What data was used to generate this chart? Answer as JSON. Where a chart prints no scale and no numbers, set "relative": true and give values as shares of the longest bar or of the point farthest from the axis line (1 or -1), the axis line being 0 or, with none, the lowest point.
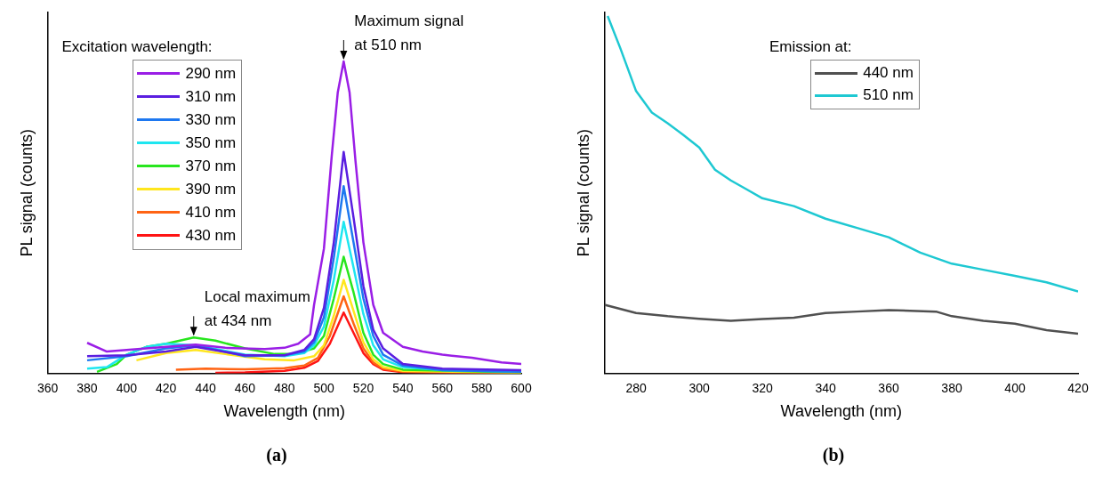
{
  "chart_data": [
    {
      "type": "line",
      "relative": true,
      "xlabel": "Wavelength (nm)",
      "ylabel": "PL signal (counts)",
      "legend_title": "Excitation wavelength:",
      "legend": "top left",
      "tick_labels": "x",
      "xlim": [
        360,
        600
      ],
      "xticks": [
        360,
        380,
        400,
        420,
        440,
        460,
        480,
        500,
        520,
        540,
        560,
        580,
        600
      ],
      "grid": false,
      "marker": "none",
      "line_style": "solid",
      "annotations": [
        {
          "text": "Maximum signal at 510 nm",
          "x": 510,
          "y": 1.0
        },
        {
          "text": "Local maximum at 434 nm",
          "x": 434,
          "y": 0.115
        },
        "(a)"
      ],
      "series": [
        {
          "name": "290 nm",
          "color": "#9a1ee6",
          "x": [
            380,
            390,
            400,
            420,
            435,
            450,
            470,
            480,
            487,
            493,
            495,
            500,
            504,
            507,
            510,
            513,
            516,
            520,
            525,
            530,
            540,
            550,
            560,
            575,
            590,
            600
          ],
          "values": [
            0.098,
            0.07,
            0.075,
            0.085,
            0.092,
            0.082,
            0.078,
            0.082,
            0.095,
            0.125,
            0.22,
            0.4,
            0.7,
            0.9,
            1.0,
            0.9,
            0.68,
            0.42,
            0.22,
            0.13,
            0.085,
            0.07,
            0.06,
            0.05,
            0.035,
            0.03
          ]
        },
        {
          "name": "310 nm",
          "color": "#5a1ee0",
          "x": [
            380,
            400,
            420,
            435,
            460,
            480,
            490,
            495,
            500,
            505,
            510,
            515,
            520,
            525,
            530,
            540,
            560,
            600
          ],
          "values": [
            0.055,
            0.058,
            0.07,
            0.085,
            0.058,
            0.058,
            0.075,
            0.11,
            0.21,
            0.42,
            0.71,
            0.5,
            0.28,
            0.14,
            0.08,
            0.03,
            0.015,
            0.01
          ]
        },
        {
          "name": "330 nm",
          "color": "#1e78f0",
          "x": [
            380,
            400,
            420,
            435,
            460,
            480,
            490,
            495,
            500,
            505,
            510,
            515,
            520,
            525,
            530,
            540,
            560,
            600
          ],
          "values": [
            0.042,
            0.055,
            0.08,
            0.09,
            0.055,
            0.058,
            0.07,
            0.1,
            0.18,
            0.37,
            0.6,
            0.42,
            0.24,
            0.12,
            0.06,
            0.025,
            0.01,
            0.005
          ]
        },
        {
          "name": "350 nm",
          "color": "#1ee6f0",
          "x": [
            380,
            390,
            400,
            410,
            420,
            435,
            460,
            480,
            490,
            495,
            500,
            505,
            510,
            515,
            520,
            525,
            530,
            540,
            560,
            600
          ],
          "values": [
            0.015,
            0.02,
            0.06,
            0.085,
            0.095,
            0.09,
            0.06,
            0.055,
            0.065,
            0.09,
            0.15,
            0.3,
            0.486,
            0.34,
            0.19,
            0.09,
            0.045,
            0.02,
            0.01,
            0.005
          ]
        },
        {
          "name": "370 nm",
          "color": "#28e61e",
          "x": [
            385,
            395,
            400,
            410,
            420,
            434,
            445,
            460,
            475,
            485,
            495,
            500,
            505,
            510,
            515,
            520,
            525,
            530,
            540,
            600
          ],
          "values": [
            0.005,
            0.03,
            0.06,
            0.085,
            0.095,
            0.115,
            0.105,
            0.08,
            0.062,
            0.062,
            0.08,
            0.12,
            0.24,
            0.374,
            0.26,
            0.13,
            0.06,
            0.03,
            0.012,
            0.003
          ]
        },
        {
          "name": "390 nm",
          "color": "#ffe61e",
          "x": [
            405,
            420,
            435,
            450,
            470,
            485,
            495,
            500,
            505,
            510,
            515,
            520,
            525,
            530,
            540,
            600
          ],
          "values": [
            0.042,
            0.065,
            0.075,
            0.062,
            0.045,
            0.042,
            0.055,
            0.09,
            0.185,
            0.3,
            0.2,
            0.1,
            0.045,
            0.02,
            0.008,
            0.002
          ]
        },
        {
          "name": "410 nm",
          "color": "#ff6414",
          "x": [
            425,
            440,
            460,
            480,
            490,
            497,
            503,
            510,
            515,
            520,
            525,
            530,
            540,
            600
          ],
          "values": [
            0.012,
            0.015,
            0.013,
            0.017,
            0.025,
            0.05,
            0.12,
            0.247,
            0.16,
            0.08,
            0.035,
            0.015,
            0.005,
            0.001
          ]
        },
        {
          "name": "430 nm",
          "color": "#ff1414",
          "x": [
            445,
            460,
            480,
            490,
            497,
            503,
            510,
            515,
            520,
            525,
            530,
            540,
            600
          ],
          "values": [
            0.002,
            0.003,
            0.008,
            0.018,
            0.04,
            0.095,
            0.195,
            0.13,
            0.065,
            0.03,
            0.012,
            0.004,
            0
          ]
        }
      ]
    },
    {
      "type": "line",
      "relative": true,
      "xlabel": "Wavelength (nm)",
      "ylabel": "PL signal (counts)",
      "legend_title": "Emission at:",
      "legend": "top",
      "tick_labels": "x",
      "xlim": [
        270,
        420
      ],
      "xticks": [
        280,
        300,
        320,
        340,
        360,
        380,
        400,
        420
      ],
      "grid": false,
      "marker": "none",
      "line_style": "solid",
      "annotations": [
        "(b)"
      ],
      "series": [
        {
          "name": "440 nm",
          "color": "#505050",
          "x": [
            270,
            280,
            290,
            300,
            310,
            320,
            330,
            340,
            350,
            360,
            375,
            380,
            390,
            400,
            410,
            420
          ],
          "values": [
            0.192,
            0.169,
            0.16,
            0.153,
            0.147,
            0.152,
            0.156,
            0.169,
            0.173,
            0.177,
            0.173,
            0.16,
            0.147,
            0.139,
            0.121,
            0.111
          ]
        },
        {
          "name": "510 nm",
          "color": "#1ec8d2",
          "x": [
            271,
            275,
            280,
            285,
            290,
            295,
            300,
            305,
            310,
            315,
            320,
            330,
            340,
            350,
            360,
            370,
            380,
            390,
            400,
            410,
            420
          ],
          "values": [
            1.0,
            0.91,
            0.79,
            0.73,
            0.7,
            0.667,
            0.632,
            0.57,
            0.54,
            0.515,
            0.49,
            0.468,
            0.433,
            0.407,
            0.381,
            0.338,
            0.307,
            0.29,
            0.273,
            0.255,
            0.229
          ]
        }
      ]
    }
  ]
}
